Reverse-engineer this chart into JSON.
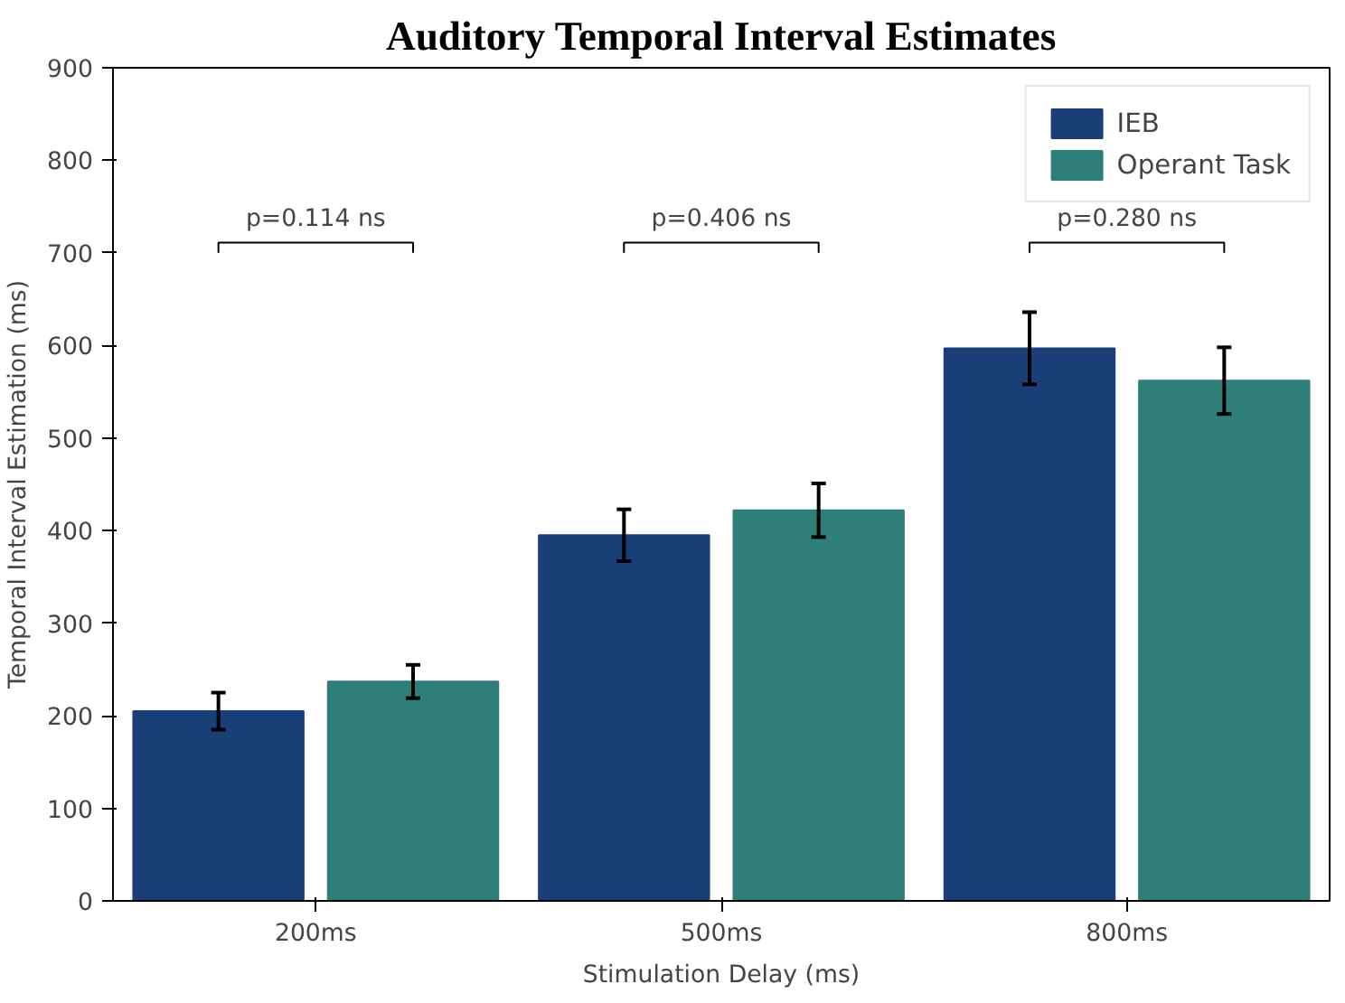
{
  "chart_data": {
    "type": "bar",
    "title": "Auditory Temporal Interval Estimates",
    "xlabel": "Stimulation Delay (ms)",
    "ylabel": "Temporal Interval Estimation (ms)",
    "categories": [
      "200ms",
      "500ms",
      "800ms"
    ],
    "series": [
      {
        "name": "IEB",
        "color": "#1a3f78",
        "values": [
          205,
          395,
          597
        ],
        "errors": [
          20,
          28,
          39
        ]
      },
      {
        "name": "Operant Task",
        "color": "#2e7f7a",
        "values": [
          237,
          422,
          562
        ],
        "errors": [
          18,
          29,
          36
        ]
      }
    ],
    "ylim": [
      0,
      900
    ],
    "yticks": [
      0,
      100,
      200,
      300,
      400,
      500,
      600,
      700,
      800,
      900
    ],
    "grid": false,
    "legend": "top right",
    "annotations": [
      "p=0.114 ns",
      "p=0.406 ns",
      "p=0.280 ns"
    ]
  }
}
